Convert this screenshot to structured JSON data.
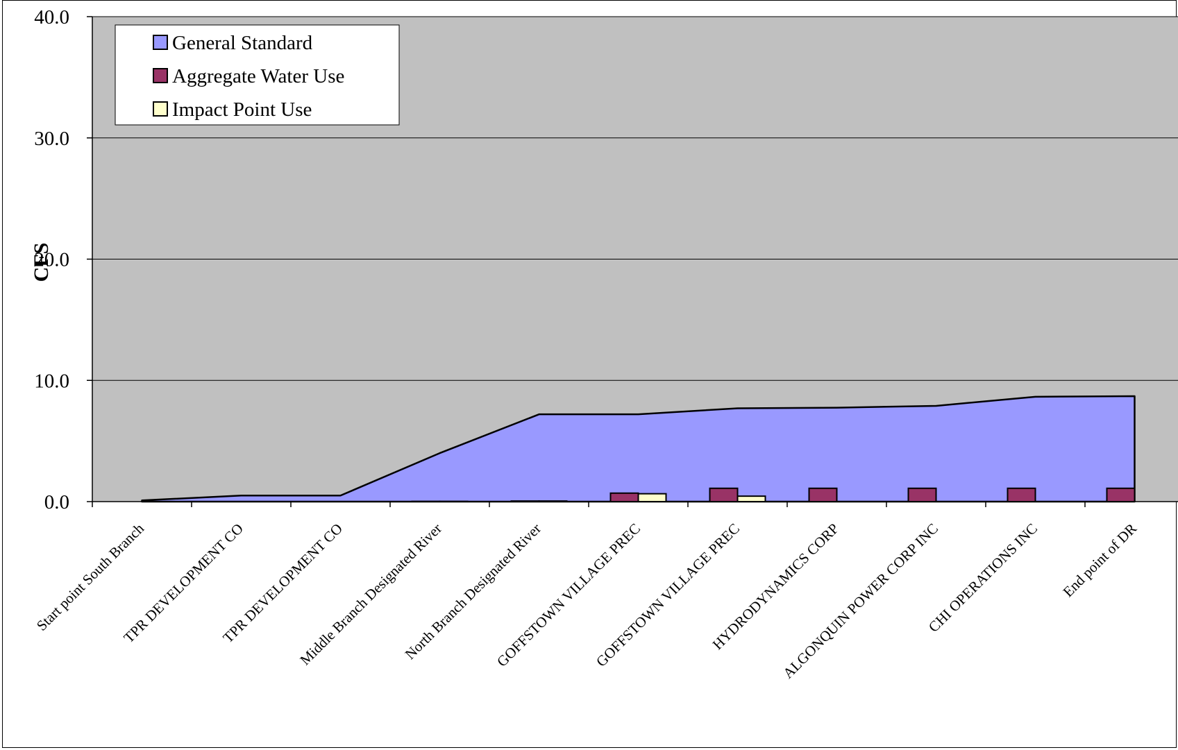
{
  "chart_data": {
    "type": "area",
    "title": "",
    "xlabel": "",
    "ylabel": "CFS",
    "ylim": [
      0,
      40
    ],
    "yticks": [
      "0.0",
      "10.0",
      "20.0",
      "30.0",
      "40.0"
    ],
    "grid": true,
    "legend_position": "top-left",
    "plot_background": "#c0c0c0",
    "categories": [
      "Start point South Branch",
      "TPR DEVELOPMENT CO",
      "TPR DEVELOPMENT CO",
      "Middle Branch Designated River",
      "North Branch Designated River",
      "GOFFSTOWN VILLAGE PREC",
      "GOFFSTOWN VILLAGE PREC",
      "HYDRODYNAMICS CORP",
      "ALGONQUIN POWER CORP INC",
      "CHI OPERATIONS INC",
      "End point of DR"
    ],
    "series": [
      {
        "name": "General Standard",
        "type": "area",
        "color": "#9999ff",
        "values": [
          0.1,
          0.5,
          0.5,
          4.0,
          7.2,
          7.2,
          7.7,
          7.75,
          7.9,
          8.65,
          8.7
        ]
      },
      {
        "name": "Aggregate Water Use",
        "type": "bar",
        "color": "#993366",
        "values": [
          0,
          0,
          0,
          0.02,
          0.05,
          0.7,
          1.1,
          1.1,
          1.1,
          1.1,
          1.1
        ]
      },
      {
        "name": "Impact Point Use",
        "type": "bar",
        "color": "#ffffcc",
        "values": [
          0,
          0,
          0,
          0.02,
          0.05,
          0.65,
          0.45,
          0,
          0,
          0,
          0
        ]
      }
    ]
  }
}
